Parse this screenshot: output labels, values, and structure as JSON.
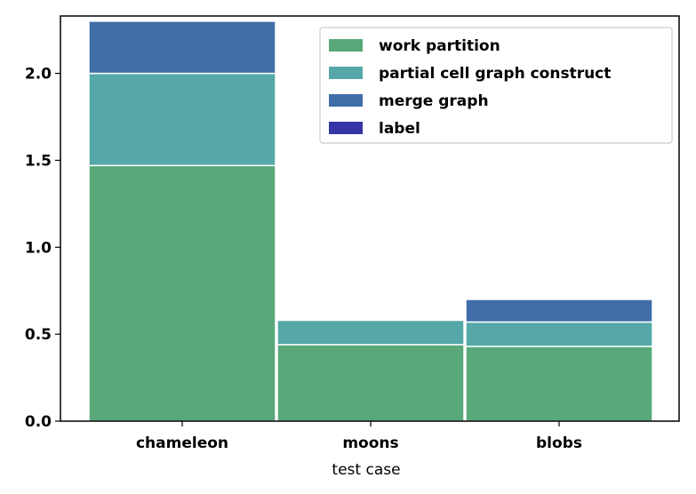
{
  "chart_data": {
    "type": "bar",
    "stacked": true,
    "title": "",
    "xlabel": "test case",
    "ylabel": "",
    "categories": [
      "chameleon",
      "moons",
      "blobs"
    ],
    "ylim": [
      0,
      2.33
    ],
    "yticks": [
      0.0,
      0.5,
      1.0,
      1.5,
      2.0
    ],
    "ytick_labels": [
      "0.0",
      "0.5",
      "1.0",
      "1.5",
      "2.0"
    ],
    "grid": false,
    "legend_position": "top-right",
    "series": [
      {
        "name": "work partition",
        "color": "#58a87a",
        "values": [
          1.47,
          0.44,
          0.43
        ]
      },
      {
        "name": "partial cell graph construct",
        "color": "#55a8a7",
        "values": [
          0.53,
          0.14,
          0.14
        ]
      },
      {
        "name": "merge graph",
        "color": "#406da8",
        "values": [
          0.3,
          0.0,
          0.13
        ]
      },
      {
        "name": "label",
        "color": "#3535a6",
        "values": [
          0.0,
          0.0,
          0.0
        ]
      }
    ]
  }
}
